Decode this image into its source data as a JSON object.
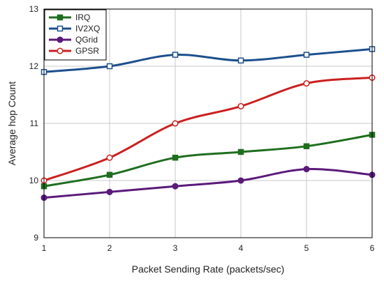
{
  "chart_data": {
    "type": "line",
    "xlabel": "Packet Sending Rate (packets/sec)",
    "ylabel": "Average hop Count",
    "x": [
      1,
      2,
      3,
      4,
      5,
      6
    ],
    "xlim": [
      1,
      6
    ],
    "ylim": [
      9,
      13
    ],
    "xticks": [
      "1",
      "2",
      "3",
      "4",
      "5",
      "6"
    ],
    "yticks": [
      "9",
      "10",
      "11",
      "12",
      "13"
    ],
    "grid": true,
    "legend_position": "top-left",
    "series": [
      {
        "name": "IRQ",
        "values": [
          9.9,
          10.1,
          10.4,
          10.5,
          10.6,
          10.8
        ],
        "color": "#1e6e1e",
        "marker": "square-filled"
      },
      {
        "name": "IV2XQ",
        "values": [
          11.9,
          12.0,
          12.2,
          12.1,
          12.2,
          12.3
        ],
        "color": "#1c4f8c",
        "marker": "square-open"
      },
      {
        "name": "QGrid",
        "values": [
          9.7,
          9.8,
          9.9,
          10.0,
          10.2,
          10.1
        ],
        "color": "#5a1a7a",
        "marker": "circle-filled"
      },
      {
        "name": "GPSR",
        "values": [
          10.0,
          10.4,
          11.0,
          11.3,
          11.7,
          11.8
        ],
        "color": "#cc1f1f",
        "marker": "circle-open"
      }
    ]
  }
}
